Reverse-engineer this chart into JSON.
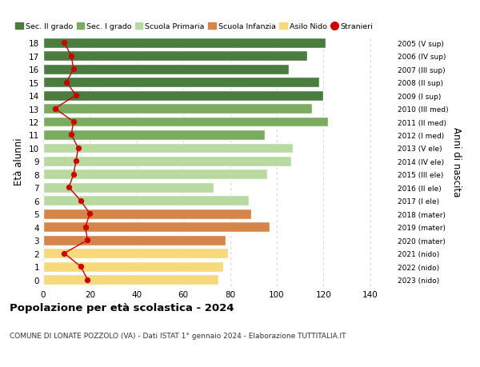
{
  "ages": [
    18,
    17,
    16,
    15,
    14,
    13,
    12,
    11,
    10,
    9,
    8,
    7,
    6,
    5,
    4,
    3,
    2,
    1,
    0
  ],
  "bar_values": [
    121,
    113,
    105,
    118,
    120,
    115,
    122,
    95,
    107,
    106,
    96,
    73,
    88,
    89,
    97,
    78,
    79,
    77,
    75
  ],
  "bar_colors": [
    "#4a7c3f",
    "#4a7c3f",
    "#4a7c3f",
    "#4a7c3f",
    "#4a7c3f",
    "#7aab5e",
    "#7aab5e",
    "#7aab5e",
    "#b8d9a0",
    "#b8d9a0",
    "#b8d9a0",
    "#b8d9a0",
    "#b8d9a0",
    "#d4854a",
    "#d4854a",
    "#d4854a",
    "#f5d97a",
    "#f5d97a",
    "#f5d97a"
  ],
  "right_labels": [
    "2005 (V sup)",
    "2006 (IV sup)",
    "2007 (III sup)",
    "2008 (II sup)",
    "2009 (I sup)",
    "2010 (III med)",
    "2011 (II med)",
    "2012 (I med)",
    "2013 (V ele)",
    "2014 (IV ele)",
    "2015 (III ele)",
    "2016 (II ele)",
    "2017 (I ele)",
    "2018 (mater)",
    "2019 (mater)",
    "2020 (mater)",
    "2021 (nido)",
    "2022 (nido)",
    "2023 (nido)"
  ],
  "stranieri_values": [
    9,
    12,
    13,
    10,
    14,
    5,
    13,
    12,
    15,
    14,
    13,
    11,
    16,
    20,
    18,
    19,
    9,
    16,
    19
  ],
  "ylabel_left": "Età alunni",
  "ylabel_right": "Anni di nascita",
  "title": "Popolazione per età scolastica - 2024",
  "subtitle": "COMUNE DI LONATE POZZOLO (VA) - Dati ISTAT 1° gennaio 2024 - Elaborazione TUTTITALIA.IT",
  "xlim": [
    0,
    150
  ],
  "xticks": [
    0,
    20,
    40,
    60,
    80,
    100,
    120,
    140
  ],
  "legend_items": [
    {
      "label": "Sec. II grado",
      "color": "#4a7c3f",
      "type": "patch"
    },
    {
      "label": "Sec. I grado",
      "color": "#7aab5e",
      "type": "patch"
    },
    {
      "label": "Scuola Primaria",
      "color": "#b8d9a0",
      "type": "patch"
    },
    {
      "label": "Scuola Infanzia",
      "color": "#d4854a",
      "type": "patch"
    },
    {
      "label": "Asilo Nido",
      "color": "#f5d97a",
      "type": "patch"
    },
    {
      "label": "Stranieri",
      "color": "#cc0000",
      "type": "circle"
    }
  ],
  "background_color": "#ffffff",
  "grid_color": "#cccccc"
}
